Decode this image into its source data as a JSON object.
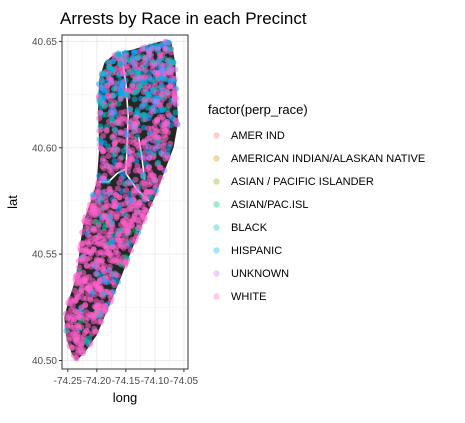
{
  "chart_data": {
    "type": "scatter",
    "title": "Arrests by Race in each Precinct",
    "xlabel": "long",
    "ylabel": "lat",
    "xlim": [
      -74.26,
      -74.043
    ],
    "ylim": [
      40.496,
      40.653
    ],
    "x_ticks": [
      -74.25,
      -74.2,
      -74.15,
      -74.1,
      -74.05
    ],
    "x_tick_labels": [
      "-74.25",
      "-74.20",
      "-74.15",
      "-74.10",
      "-74.05"
    ],
    "y_ticks": [
      40.5,
      40.55,
      40.6,
      40.65
    ],
    "y_tick_labels": [
      "40.50",
      "40.55",
      "40.60",
      "40.65"
    ],
    "grid": true,
    "legend_position": "right",
    "legend_title": "factor(perp_race)",
    "series": [
      {
        "name": "AMER IND",
        "color": "#F8766D"
      },
      {
        "name": "AMERICAN INDIAN/ALASKAN NATIVE",
        "color": "#CD9600"
      },
      {
        "name": "ASIAN / PACIFIC ISLANDER",
        "color": "#7CAE00"
      },
      {
        "name": "ASIAN/PAC.ISL",
        "color": "#00BE67"
      },
      {
        "name": "BLACK",
        "color": "#00BFC4"
      },
      {
        "name": "HISPANIC",
        "color": "#00A9FF"
      },
      {
        "name": "UNKNOWN",
        "color": "#C77CFF"
      },
      {
        "name": "WHITE",
        "color": "#FF61CC"
      }
    ],
    "basemap_color": "#262626",
    "boundary_color": "#ffffff"
  }
}
